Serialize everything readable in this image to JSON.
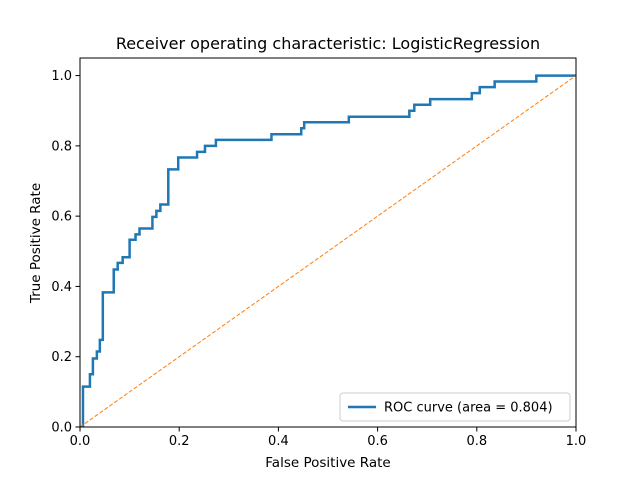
{
  "chart_data": {
    "type": "line",
    "title": "Receiver operating characteristic: LogisticRegression",
    "xlabel": "False Positive Rate",
    "ylabel": "True Positive Rate",
    "xlim": [
      0.0,
      1.0
    ],
    "ylim": [
      0.0,
      1.05
    ],
    "x_ticks": [
      0.0,
      0.2,
      0.4,
      0.6,
      0.8,
      1.0
    ],
    "x_tick_labels": [
      "0.0",
      "0.2",
      "0.4",
      "0.6",
      "0.8",
      "1.0"
    ],
    "y_ticks": [
      0.0,
      0.2,
      0.4,
      0.6,
      0.8,
      1.0
    ],
    "y_tick_labels": [
      "0.0",
      "0.2",
      "0.4",
      "0.6",
      "0.8",
      "1.0"
    ],
    "grid": false,
    "legend_position": "lower-right",
    "series": [
      {
        "name": "ROC curve (area = 0.804)",
        "color": "#1f77b4",
        "style": "solid",
        "step": true,
        "x": [
          0.0,
          0.006,
          0.006,
          0.02,
          0.02,
          0.026,
          0.026,
          0.034,
          0.034,
          0.04,
          0.04,
          0.046,
          0.046,
          0.052,
          0.052,
          0.068,
          0.068,
          0.076,
          0.076,
          0.086,
          0.086,
          0.1,
          0.1,
          0.112,
          0.112,
          0.12,
          0.12,
          0.146,
          0.146,
          0.154,
          0.154,
          0.162,
          0.162,
          0.178,
          0.178,
          0.198,
          0.198,
          0.236,
          0.236,
          0.252,
          0.252,
          0.274,
          0.274,
          0.386,
          0.386,
          0.446,
          0.446,
          0.452,
          0.452,
          0.542,
          0.542,
          0.664,
          0.664,
          0.674,
          0.674,
          0.706,
          0.706,
          0.79,
          0.79,
          0.806,
          0.806,
          0.836,
          0.836,
          0.92,
          0.92,
          1.0
        ],
        "y": [
          0.0,
          0.0,
          0.115,
          0.115,
          0.15,
          0.15,
          0.195,
          0.195,
          0.215,
          0.215,
          0.248,
          0.248,
          0.383,
          0.383,
          0.383,
          0.383,
          0.448,
          0.448,
          0.467,
          0.467,
          0.483,
          0.483,
          0.533,
          0.533,
          0.548,
          0.548,
          0.565,
          0.565,
          0.598,
          0.598,
          0.615,
          0.615,
          0.633,
          0.633,
          0.733,
          0.733,
          0.767,
          0.767,
          0.783,
          0.783,
          0.8,
          0.8,
          0.817,
          0.817,
          0.833,
          0.833,
          0.85,
          0.85,
          0.867,
          0.867,
          0.883,
          0.883,
          0.9,
          0.9,
          0.917,
          0.917,
          0.933,
          0.933,
          0.95,
          0.95,
          0.967,
          0.967,
          0.983,
          0.983,
          1.0,
          1.0
        ]
      },
      {
        "name": "",
        "color": "#ff7f0e",
        "style": "dashed",
        "x": [
          0.0,
          1.0
        ],
        "y": [
          0.0,
          1.0
        ]
      }
    ]
  }
}
